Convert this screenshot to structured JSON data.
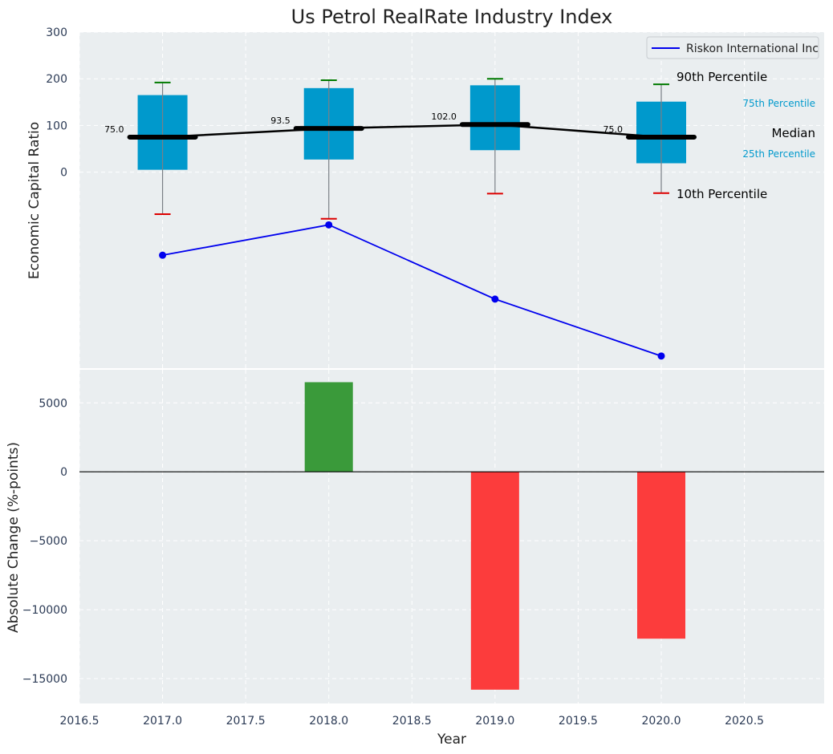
{
  "chart_data": [
    {
      "type": "box",
      "title": "Us Petrol RealRate Industry Index",
      "ylabel": "Economic Capital Ratio",
      "ylim": [
        -420,
        300
      ],
      "yticks": [
        0,
        100,
        200,
        300
      ],
      "x": [
        2017,
        2018,
        2019,
        2020
      ],
      "boxes": [
        {
          "year": 2017,
          "p10": -90,
          "p25": 5,
          "median": 75,
          "p75": 165,
          "p90": 192,
          "label": "75.0"
        },
        {
          "year": 2018,
          "p10": -100,
          "p25": 27,
          "median": 93.5,
          "p75": 180,
          "p90": 197,
          "label": "93.5"
        },
        {
          "year": 2019,
          "p10": -46,
          "p25": 47,
          "median": 102,
          "p75": 186,
          "p90": 200,
          "label": "102.0"
        },
        {
          "year": 2020,
          "p10": -45,
          "p25": 19,
          "median": 75,
          "p75": 151,
          "p90": 188,
          "label": "75.0"
        }
      ],
      "series": [
        {
          "name": "Riskon International Inc",
          "color": "#0000ee",
          "values": [
            -178,
            -113,
            -272,
            -394
          ]
        }
      ],
      "legend_label": "Riskon International Inc",
      "annotations": {
        "p90": "90th Percentile",
        "p75": "75th Percentile",
        "median": "Median",
        "p25": "25th Percentile",
        "p10": "10th Percentile"
      }
    },
    {
      "type": "bar",
      "xlabel": "Year",
      "ylabel": "Absolute Change (%-points)",
      "ylim": [
        -16800,
        7400
      ],
      "yticks": [
        -15000,
        -10000,
        -5000,
        0,
        5000
      ],
      "ytick_labels": [
        "−15000",
        "−10000",
        "−5000",
        "0",
        "5000"
      ],
      "xlim": [
        2016.5,
        2020.98
      ],
      "xticks": [
        2016.5,
        2017.0,
        2017.5,
        2018.0,
        2018.5,
        2019.0,
        2019.5,
        2020.0,
        2020.5
      ],
      "xtick_labels": [
        "2016.5",
        "2017.0",
        "2017.5",
        "2018.0",
        "2018.5",
        "2019.0",
        "2019.5",
        "2020.0",
        "2020.5"
      ],
      "x": [
        2018,
        2019,
        2020
      ],
      "values": [
        6500,
        -15800,
        -12100
      ],
      "colors": {
        "positive": "#3a9a3a",
        "negative": "#fc3c3c"
      }
    }
  ],
  "colors": {
    "plot_bg": "#eaeef0",
    "box": "#0099cc",
    "median": "#000000",
    "p90_cap": "#007a00",
    "p10_cap": "#dd0000",
    "annotation_blue": "#0099cc"
  }
}
